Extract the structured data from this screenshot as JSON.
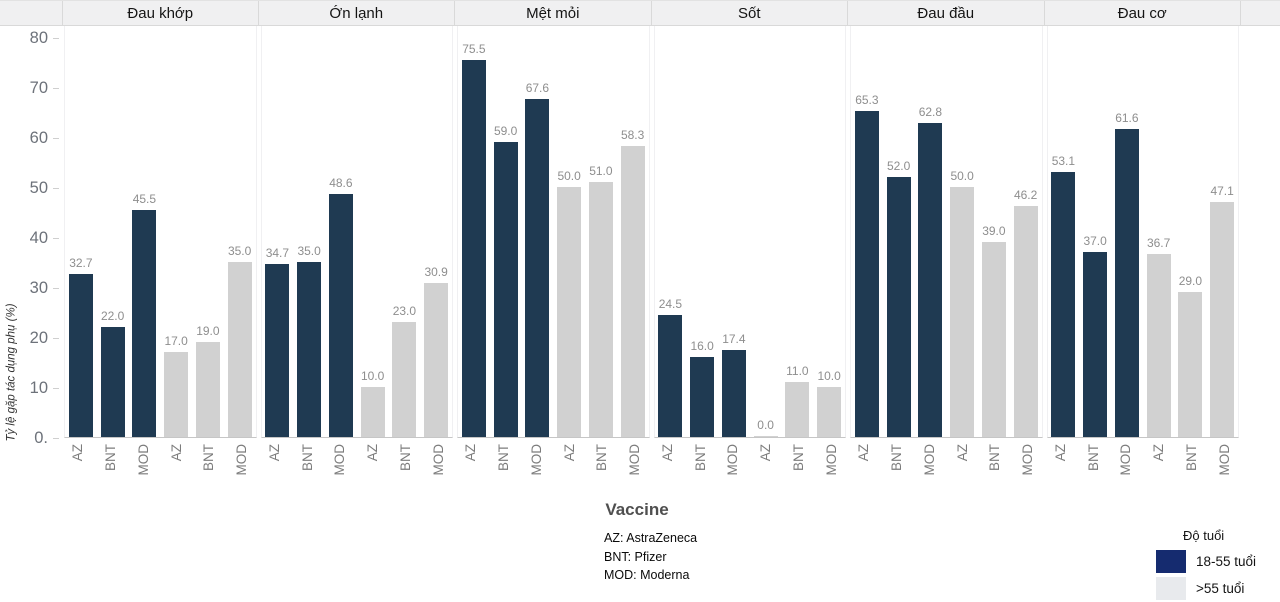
{
  "chart_data": {
    "type": "bar",
    "faceted": true,
    "xlabel": "Vaccine",
    "ylabel": "Tỷ lệ gặp tác dụng phụ (%)",
    "ylim": [
      0,
      80
    ],
    "grid": false,
    "yticks": [
      {
        "label": "80",
        "value": 80
      },
      {
        "label": "70",
        "value": 70
      },
      {
        "label": "60",
        "value": 60
      },
      {
        "label": "50",
        "value": 50
      },
      {
        "label": "40",
        "value": 40
      },
      {
        "label": "30",
        "value": 30
      },
      {
        "label": "20",
        "value": 20
      },
      {
        "label": "10",
        "value": 10
      },
      {
        "label": "0.",
        "value": 0
      }
    ],
    "bar_categories": [
      "AZ",
      "BNT",
      "MOD",
      "AZ",
      "BNT",
      "MOD"
    ],
    "bar_series_index": [
      0,
      0,
      0,
      1,
      1,
      1
    ],
    "series_names": [
      "18-55 tuổi",
      ">55 tuổi"
    ],
    "series_colors": [
      "#1f3a52",
      "#d1d1d1"
    ],
    "panels": [
      {
        "title": "Đau khớp",
        "values": [
          32.7,
          22.0,
          45.5,
          17.0,
          19.0,
          35.0
        ]
      },
      {
        "title": "Ớn lạnh",
        "values": [
          34.7,
          35.0,
          48.6,
          10.0,
          23.0,
          30.9
        ]
      },
      {
        "title": "Mệt mỏi",
        "values": [
          75.5,
          59.0,
          67.6,
          50.0,
          51.0,
          58.3
        ]
      },
      {
        "title": "Sốt",
        "values": [
          24.5,
          16.0,
          17.4,
          0.0,
          11.0,
          10.0
        ]
      },
      {
        "title": "Đau đầu",
        "values": [
          65.3,
          52.0,
          62.8,
          50.0,
          39.0,
          46.2
        ]
      },
      {
        "title": "Đau cơ",
        "values": [
          53.1,
          37.0,
          61.6,
          36.7,
          29.0,
          47.1
        ]
      }
    ],
    "legend": {
      "title": "Độ tuổi",
      "position": "bottom-right",
      "entries": [
        {
          "label": "18-55 tuổi",
          "swatch_color": "#152b6f"
        },
        {
          "label": ">55 tuổi",
          "swatch_color": "#e8eaed"
        }
      ]
    },
    "footnotes": [
      "AZ: AstraZeneca",
      "BNT: Pfizer",
      "MOD: Moderna"
    ]
  }
}
